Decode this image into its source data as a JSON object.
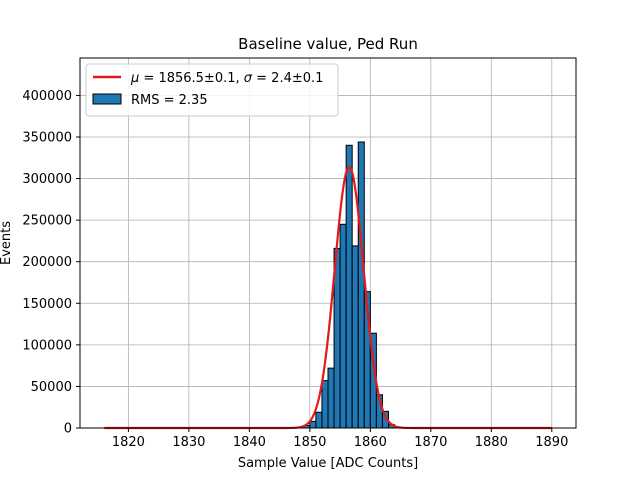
{
  "chart_data": {
    "type": "bar",
    "title": "Baseline value, Ped Run",
    "xlabel": "Sample Value [ADC Counts]",
    "ylabel": "Events",
    "xlim": [
      1812,
      1894
    ],
    "ylim": [
      0,
      445000
    ],
    "xticks": [
      1820,
      1830,
      1840,
      1850,
      1860,
      1870,
      1880,
      1890
    ],
    "yticks": [
      0,
      50000,
      100000,
      150000,
      200000,
      250000,
      300000,
      350000,
      400000
    ],
    "grid": true,
    "legend_position": "top-left",
    "histogram": {
      "name": "RMS = 2.35",
      "color": "#1f77b4",
      "edge_color": "#000000",
      "bin_width": 1,
      "bin_left_edges": [
        1849,
        1850,
        1851,
        1852,
        1853,
        1854,
        1855,
        1856,
        1857,
        1858,
        1859,
        1860,
        1861,
        1862,
        1863
      ],
      "counts": [
        3000,
        8000,
        19000,
        57000,
        72000,
        216000,
        245000,
        340000,
        219000,
        344000,
        164000,
        114000,
        40000,
        20000,
        4000
      ]
    },
    "fit": {
      "name": "$\\mu = 1856.5{\\pm}0.1$, $\\sigma = 2.4{\\pm}0.1$",
      "legend_label_prefix_mu": "μ",
      "legend_label_mu_value": " = 1856.5±0.1, ",
      "legend_label_prefix_sigma": "σ",
      "legend_label_sigma_value": " = 2.4±0.1",
      "color": "#e31a1c",
      "type": "gaussian",
      "mu": 1856.5,
      "sigma": 2.4,
      "amplitude": 314000,
      "x_range": [
        1816,
        1890
      ]
    }
  }
}
